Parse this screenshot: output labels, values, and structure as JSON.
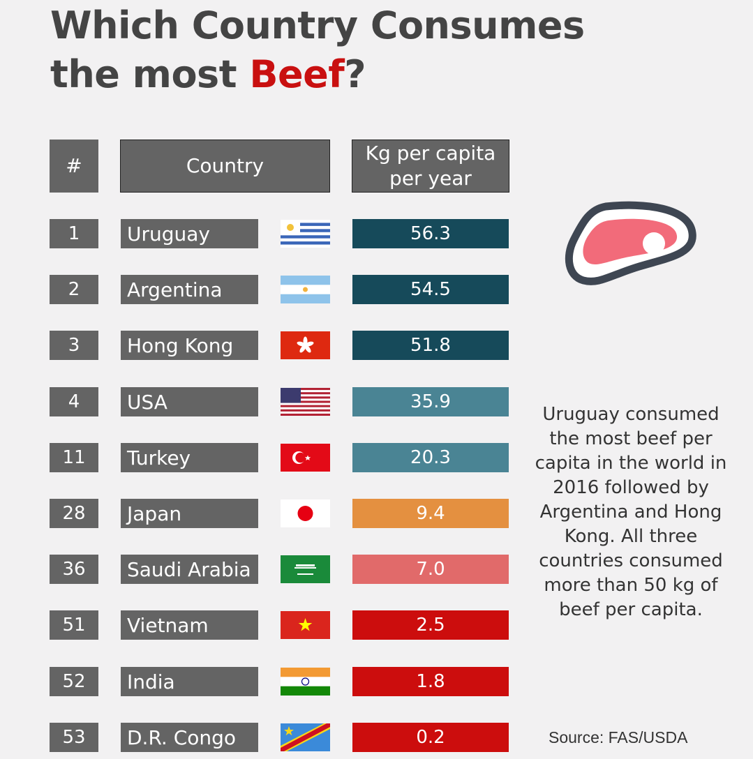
{
  "title": {
    "line1": "Which Country Consumes",
    "line2_prefix": "the most ",
    "line2_highlight": "Beef",
    "line2_suffix": "?"
  },
  "colors": {
    "highlight": "#c91010",
    "cell": "#646464",
    "tier_dark": "#164a5a",
    "tier_teal": "#4a8494",
    "tier_orange": "#e49040",
    "tier_salmon": "#e16a6a",
    "tier_red": "#cc0d0d"
  },
  "table": {
    "headers": {
      "rank": "#",
      "country": "Country",
      "value": "Kg per capita per year"
    }
  },
  "chart_data": {
    "type": "table",
    "columns": [
      "#",
      "Country",
      "Kg per capita per year"
    ],
    "rows": [
      {
        "rank": "1",
        "country": "Uruguay",
        "value": "56.3",
        "flag": "uruguay-flag",
        "color": "#164a5a"
      },
      {
        "rank": "2",
        "country": "Argentina",
        "value": "54.5",
        "flag": "argentina-flag",
        "color": "#164a5a"
      },
      {
        "rank": "3",
        "country": "Hong Kong",
        "value": "51.8",
        "flag": "hong-kong-flag",
        "color": "#164a5a"
      },
      {
        "rank": "4",
        "country": "USA",
        "value": "35.9",
        "flag": "usa-flag",
        "color": "#4a8494"
      },
      {
        "rank": "11",
        "country": "Turkey",
        "value": "20.3",
        "flag": "turkey-flag",
        "color": "#4a8494"
      },
      {
        "rank": "28",
        "country": "Japan",
        "value": "9.4",
        "flag": "japan-flag",
        "color": "#e49040"
      },
      {
        "rank": "36",
        "country": "Saudi Arabia",
        "value": "7.0",
        "flag": "saudi-arabia-flag",
        "color": "#e16a6a"
      },
      {
        "rank": "51",
        "country": "Vietnam",
        "value": "2.5",
        "flag": "vietnam-flag",
        "color": "#cc0d0d"
      },
      {
        "rank": "52",
        "country": "India",
        "value": "1.8",
        "flag": "india-flag",
        "color": "#cc0d0d"
      },
      {
        "rank": "53",
        "country": "D.R. Congo",
        "value": "0.2",
        "flag": "dr-congo-flag",
        "color": "#cc0d0d"
      }
    ]
  },
  "icon": "meat-steak-icon",
  "note": "Uruguay consumed the most beef per capita in the world in 2016 followed by Argentina and Hong Kong. All three countries consumed more than 50 kg of beef per capita.",
  "source": "Source: FAS/USDA"
}
